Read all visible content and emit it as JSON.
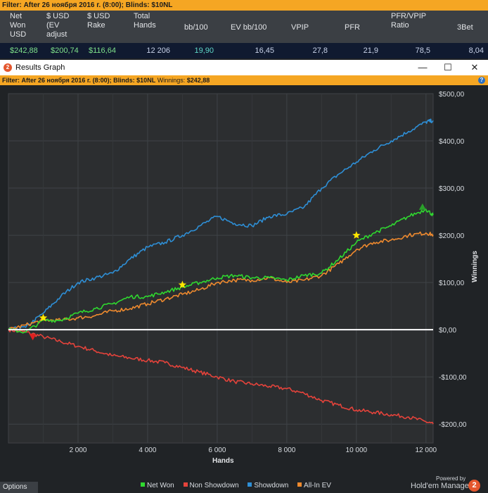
{
  "top_filter": {
    "label": "Filter:",
    "text": "After 26 ноября 2016 г. (8:00); Blinds: $10NL"
  },
  "stats": {
    "headers": [
      [
        "Net",
        "Won",
        "USD"
      ],
      [
        "$ USD",
        "(EV",
        "adjust"
      ],
      [
        "$ USD",
        "Rake"
      ],
      [
        "Total",
        "Hands"
      ],
      [
        "bb/100"
      ],
      [
        "EV bb/100"
      ],
      [
        "VPIP"
      ],
      [
        "PFR"
      ],
      [
        "PFR/VPIP",
        "Ratio"
      ],
      [
        "3Bet"
      ]
    ],
    "values": [
      "$242,88",
      "$200,74",
      "$116,64",
      "12 206",
      "19,90",
      "16,45",
      "27,8",
      "21,9",
      "78,5",
      "8,04"
    ]
  },
  "window": {
    "title": "Results Graph",
    "minimize": "—",
    "maximize": "☐",
    "close": "✕"
  },
  "graph_filter": {
    "label": "Filter:",
    "text": "After 26 ноября 2016 г. (8:00); Blinds: $10NL",
    "winnings_label": "Winnings:",
    "winnings_value": "$242,88",
    "help": "?"
  },
  "footer": {
    "options_label": "Options",
    "powered_by": "Powered by",
    "brand": "Hold'em Manager",
    "brand_badge": "2"
  },
  "colors": {
    "net_won": "#2fd92f",
    "non_showdown": "#e5433b",
    "showdown": "#2e8fd6",
    "all_in_ev": "#ef8a2e",
    "zero_line": "#ffffff"
  },
  "chart_data": {
    "type": "line",
    "xlabel": "Hands",
    "ylabel": "Winnings",
    "xlim": [
      0,
      12206
    ],
    "ylim": [
      -240,
      500
    ],
    "x_ticks": [
      2000,
      4000,
      6000,
      8000,
      10000,
      12000
    ],
    "x_tick_labels": [
      "2 000",
      "4 000",
      "6 000",
      "8 000",
      "10 000",
      "12 000"
    ],
    "y_ticks": [
      -200,
      -100,
      0,
      100,
      200,
      300,
      400,
      500
    ],
    "y_tick_labels": [
      "-$200,00",
      "-$100,00",
      "$0,00",
      "$100,00",
      "$200,00",
      "$300,00",
      "$400,00",
      "$500,00"
    ],
    "grid": true,
    "legend_position": "bottom",
    "series": [
      {
        "name": "Net Won",
        "color": "#2fd92f",
        "x": [
          0,
          500,
          1000,
          1500,
          2000,
          2500,
          3000,
          3500,
          4000,
          4500,
          5000,
          5500,
          6000,
          6500,
          7000,
          7500,
          8000,
          8500,
          9000,
          9500,
          10000,
          10500,
          11000,
          11500,
          12000,
          12206
        ],
        "y": [
          0,
          -5,
          20,
          20,
          35,
          45,
          55,
          70,
          70,
          80,
          90,
          100,
          110,
          115,
          110,
          110,
          105,
          115,
          120,
          150,
          185,
          205,
          220,
          240,
          255,
          243
        ]
      },
      {
        "name": "Non Showdown",
        "color": "#e5433b",
        "x": [
          0,
          500,
          1000,
          1500,
          2000,
          2500,
          3000,
          3500,
          4000,
          4500,
          5000,
          5500,
          6000,
          6500,
          7000,
          7500,
          8000,
          8500,
          9000,
          9500,
          10000,
          10500,
          11000,
          11500,
          12000,
          12206
        ],
        "y": [
          0,
          -5,
          -15,
          -25,
          -35,
          -45,
          -55,
          -60,
          -65,
          -70,
          -80,
          -90,
          -100,
          -110,
          -115,
          -120,
          -125,
          -135,
          -150,
          -160,
          -170,
          -175,
          -180,
          -185,
          -195,
          -200
        ]
      },
      {
        "name": "Showdown",
        "color": "#2e8fd6",
        "x": [
          0,
          500,
          1000,
          1500,
          2000,
          2500,
          3000,
          3500,
          4000,
          4500,
          5000,
          5500,
          6000,
          6500,
          7000,
          7500,
          8000,
          8500,
          9000,
          9500,
          10000,
          10500,
          11000,
          11500,
          12000,
          12206
        ],
        "y": [
          0,
          5,
          35,
          70,
          100,
          110,
          120,
          150,
          175,
          185,
          200,
          220,
          240,
          225,
          220,
          240,
          245,
          260,
          300,
          330,
          355,
          380,
          400,
          420,
          440,
          443
        ]
      },
      {
        "name": "All-In EV",
        "color": "#ef8a2e",
        "x": [
          0,
          500,
          1000,
          1500,
          2000,
          2500,
          3000,
          3500,
          4000,
          4500,
          5000,
          5500,
          6000,
          6500,
          7000,
          7500,
          8000,
          8500,
          9000,
          9500,
          10000,
          10500,
          11000,
          11500,
          12000,
          12206
        ],
        "y": [
          0,
          10,
          20,
          20,
          25,
          30,
          40,
          45,
          55,
          65,
          75,
          85,
          100,
          105,
          105,
          110,
          100,
          105,
          115,
          140,
          170,
          185,
          190,
          200,
          205,
          201
        ]
      }
    ],
    "markers": [
      {
        "type": "star",
        "color": "#ffe600",
        "x": 1000,
        "y": 25
      },
      {
        "type": "star",
        "color": "#ffe600",
        "x": 5000,
        "y": 95
      },
      {
        "type": "star",
        "color": "#ffe600",
        "x": 10000,
        "y": 200
      },
      {
        "type": "triangle-down",
        "color": "#e02020",
        "x": 700,
        "y": -15
      },
      {
        "type": "triangle-up",
        "color": "#2aa02a",
        "x": 11900,
        "y": 260
      }
    ]
  }
}
